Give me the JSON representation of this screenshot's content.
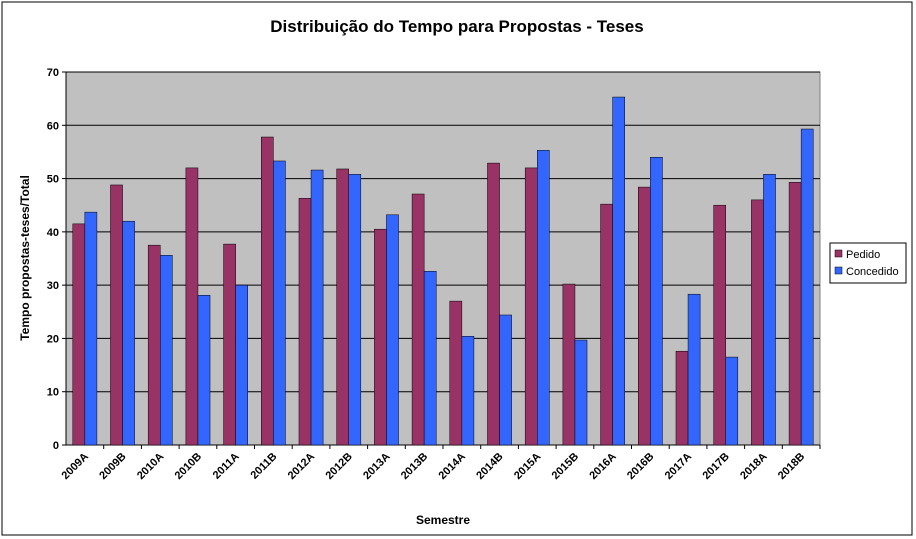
{
  "chart_data": {
    "type": "bar",
    "title": "Distribuição do Tempo para Propostas - Teses",
    "x_label": "Semestre",
    "y_label": "Tempo propostas-teses/Total",
    "categories": [
      "2009A",
      "2009B",
      "2010A",
      "2010B",
      "2011A",
      "2011B",
      "2012A",
      "2012B",
      "2013A",
      "2013B",
      "2014A",
      "2014B",
      "2015A",
      "2015B",
      "2016A",
      "2016B",
      "2017A",
      "2017B",
      "2018A",
      "2018B"
    ],
    "series": [
      {
        "name": "Pedido",
        "color": "#993366",
        "values": [
          41.5,
          48.8,
          37.5,
          52.0,
          37.7,
          57.8,
          46.3,
          51.8,
          40.5,
          47.1,
          27.0,
          52.9,
          52.0,
          30.2,
          45.2,
          48.4,
          17.6,
          45.0,
          46.0,
          49.3
        ]
      },
      {
        "name": "Concedido",
        "color": "#3366ff",
        "values": [
          43.7,
          42.0,
          35.6,
          28.1,
          30.0,
          53.3,
          51.6,
          50.8,
          43.2,
          32.6,
          20.4,
          24.4,
          55.3,
          19.7,
          65.3,
          54.0,
          28.3,
          16.5,
          50.8,
          59.3
        ]
      }
    ],
    "ylim": [
      0,
      70
    ],
    "yticks": [
      0,
      10,
      20,
      30,
      40,
      50,
      60,
      70
    ],
    "grid": true,
    "legend": "right"
  }
}
